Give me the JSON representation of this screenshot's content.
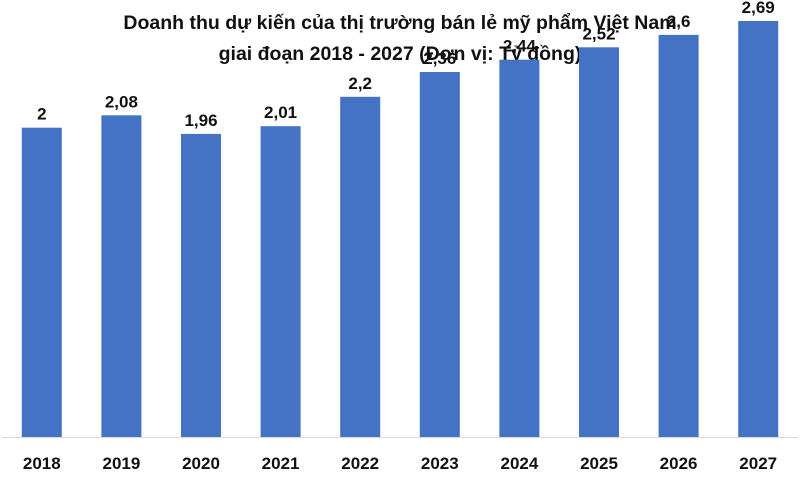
{
  "chart_data": {
    "type": "bar",
    "title_line1": "Doanh thu dự kiến của thị trường bán lẻ mỹ phẩm Việt Nam",
    "title_line2": "giai đoạn 2018 - 2027 (Đơn vị: Tỷ đồng)",
    "categories": [
      "2018",
      "2019",
      "2020",
      "2021",
      "2022",
      "2023",
      "2024",
      "2025",
      "2026",
      "2027"
    ],
    "values": [
      2,
      2.08,
      1.96,
      2.01,
      2.2,
      2.36,
      2.44,
      2.52,
      2.6,
      2.69
    ],
    "value_labels": [
      "2",
      "2,08",
      "1,96",
      "2,01",
      "2,2",
      "2,36",
      "2,44",
      "2,52",
      "2,6",
      "2,69"
    ],
    "ylim": [
      0,
      2.8
    ],
    "grid": false,
    "legend": "none",
    "bar_color": "#4472C4",
    "axis_color": "#D9D9D9"
  }
}
